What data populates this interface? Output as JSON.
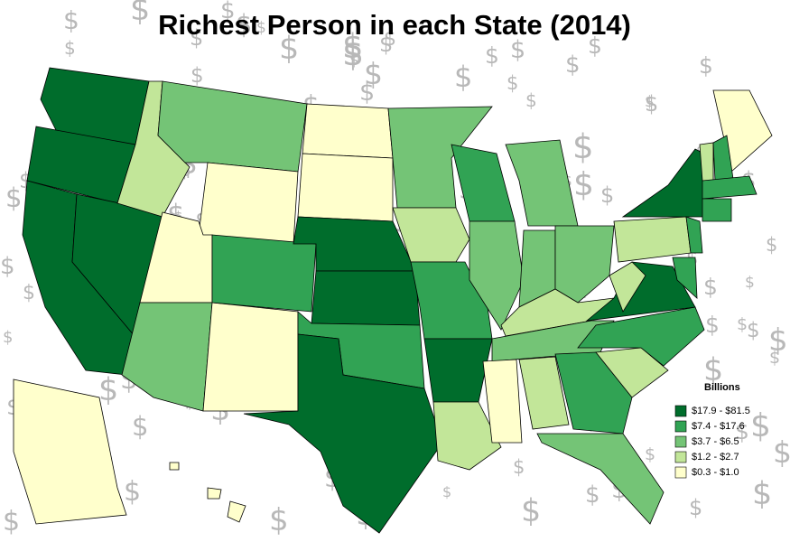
{
  "header": {
    "title": "Richest Person in each State (2014)"
  },
  "background_symbol": "$",
  "legend": {
    "title": "Billions",
    "items": [
      {
        "label": "$17.9 - $81.5",
        "color": "#006d2c"
      },
      {
        "label": "$7.4 - $17.6",
        "color": "#31a354"
      },
      {
        "label": "$3.7 - $6.5",
        "color": "#74c476"
      },
      {
        "label": "$1.2 - $2.7",
        "color": "#c2e699"
      },
      {
        "label": "$0.3 - $1.0",
        "color": "#ffffcc"
      }
    ]
  }
}
